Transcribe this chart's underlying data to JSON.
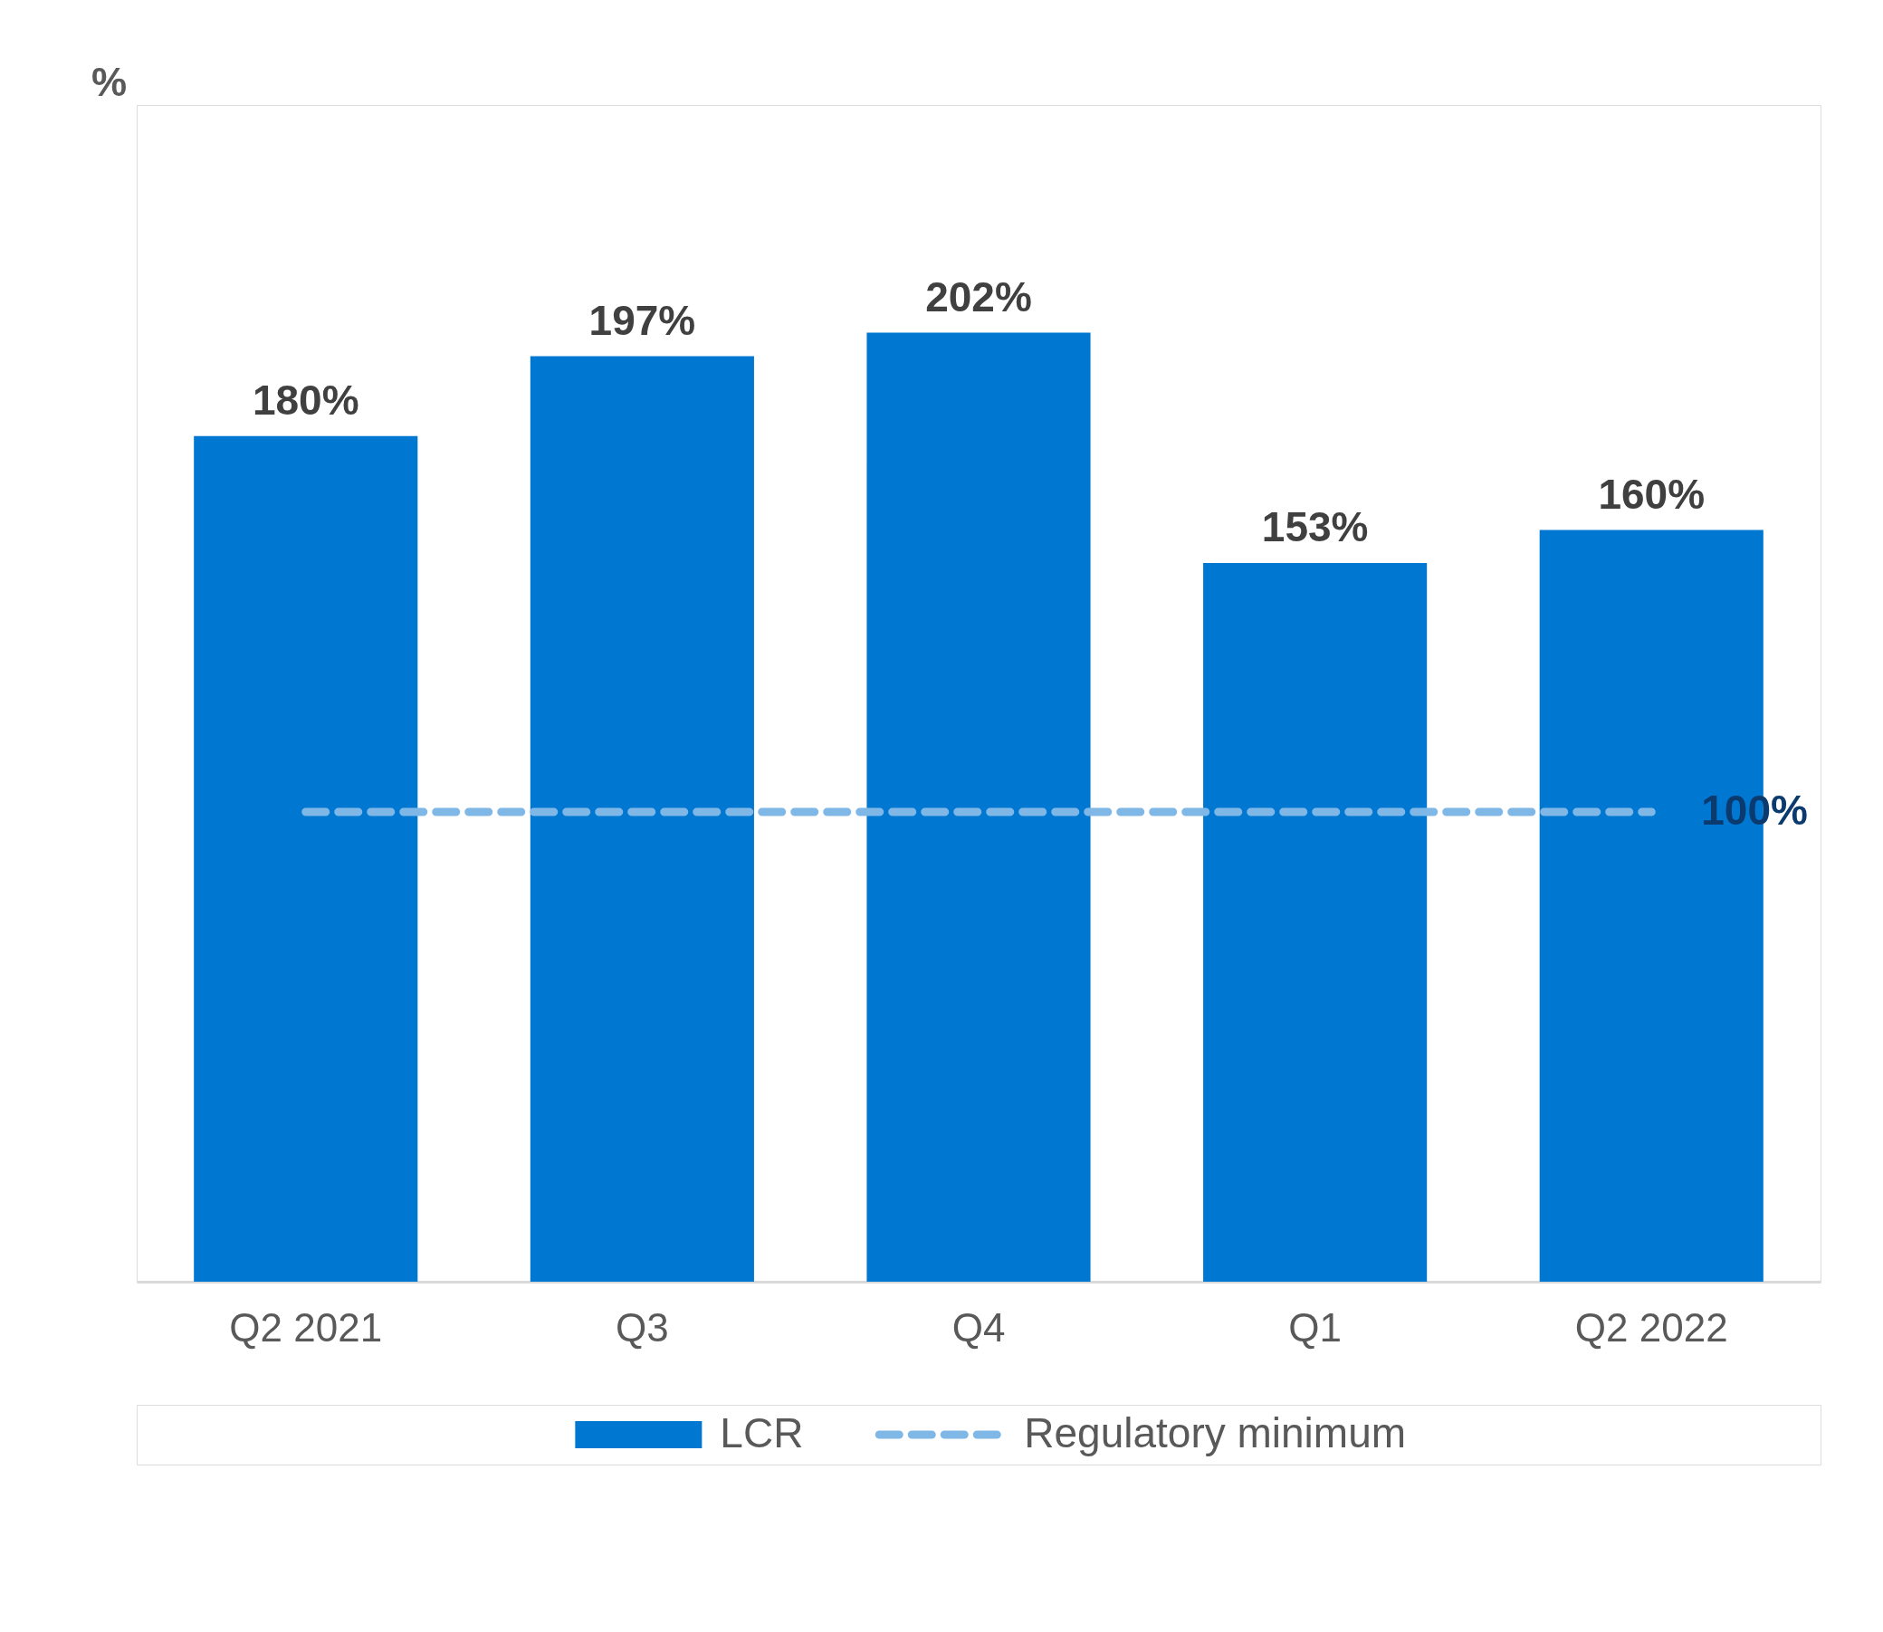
{
  "chart_data": {
    "type": "bar",
    "annotations": [
      "%"
    ],
    "categories": [
      "Q2 2021",
      "Q3",
      "Q4",
      "Q1",
      "Q2 2022"
    ],
    "series": [
      {
        "name": "LCR",
        "color": "#0078d2",
        "values": [
          180,
          197,
          202,
          153,
          160
        ],
        "value_labels": [
          "180%",
          "197%",
          "202%",
          "153%",
          "160%"
        ]
      },
      {
        "name": "Regulatory minimum",
        "type": "line",
        "line_style": "dashed",
        "color": "#7fb8e6",
        "values": [
          100,
          100,
          100,
          100,
          100
        ],
        "value_labels": [
          null,
          null,
          null,
          null,
          "100%"
        ]
      }
    ],
    "legend": "bottom"
  }
}
